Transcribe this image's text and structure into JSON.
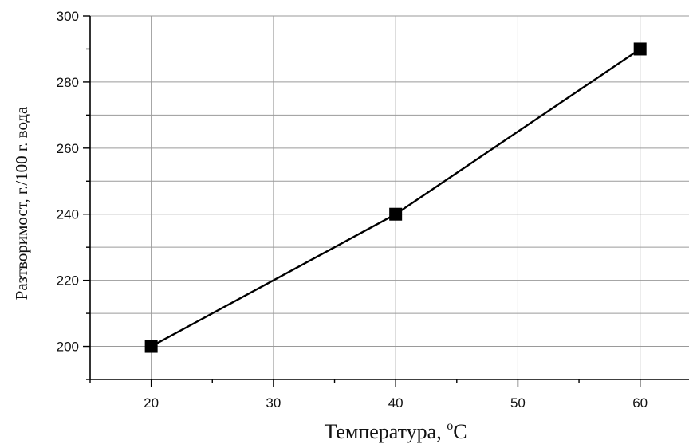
{
  "chart_data": {
    "type": "line",
    "xlabel": "Температура, ",
    "xlabel_sup": "o",
    "xlabel_unit": "C",
    "ylabel": "Разтворимост, г./100 г. вода",
    "x_ticks": [
      "20",
      "30",
      "40",
      "50",
      "60"
    ],
    "y_ticks": [
      "200",
      "220",
      "240",
      "260",
      "280",
      "300"
    ],
    "xlim": [
      15,
      64
    ],
    "ylim": [
      190,
      300
    ],
    "grid": true,
    "series": [
      {
        "x": [
          20,
          40,
          60
        ],
        "y": [
          200,
          240,
          290
        ],
        "marker": "square"
      }
    ]
  }
}
